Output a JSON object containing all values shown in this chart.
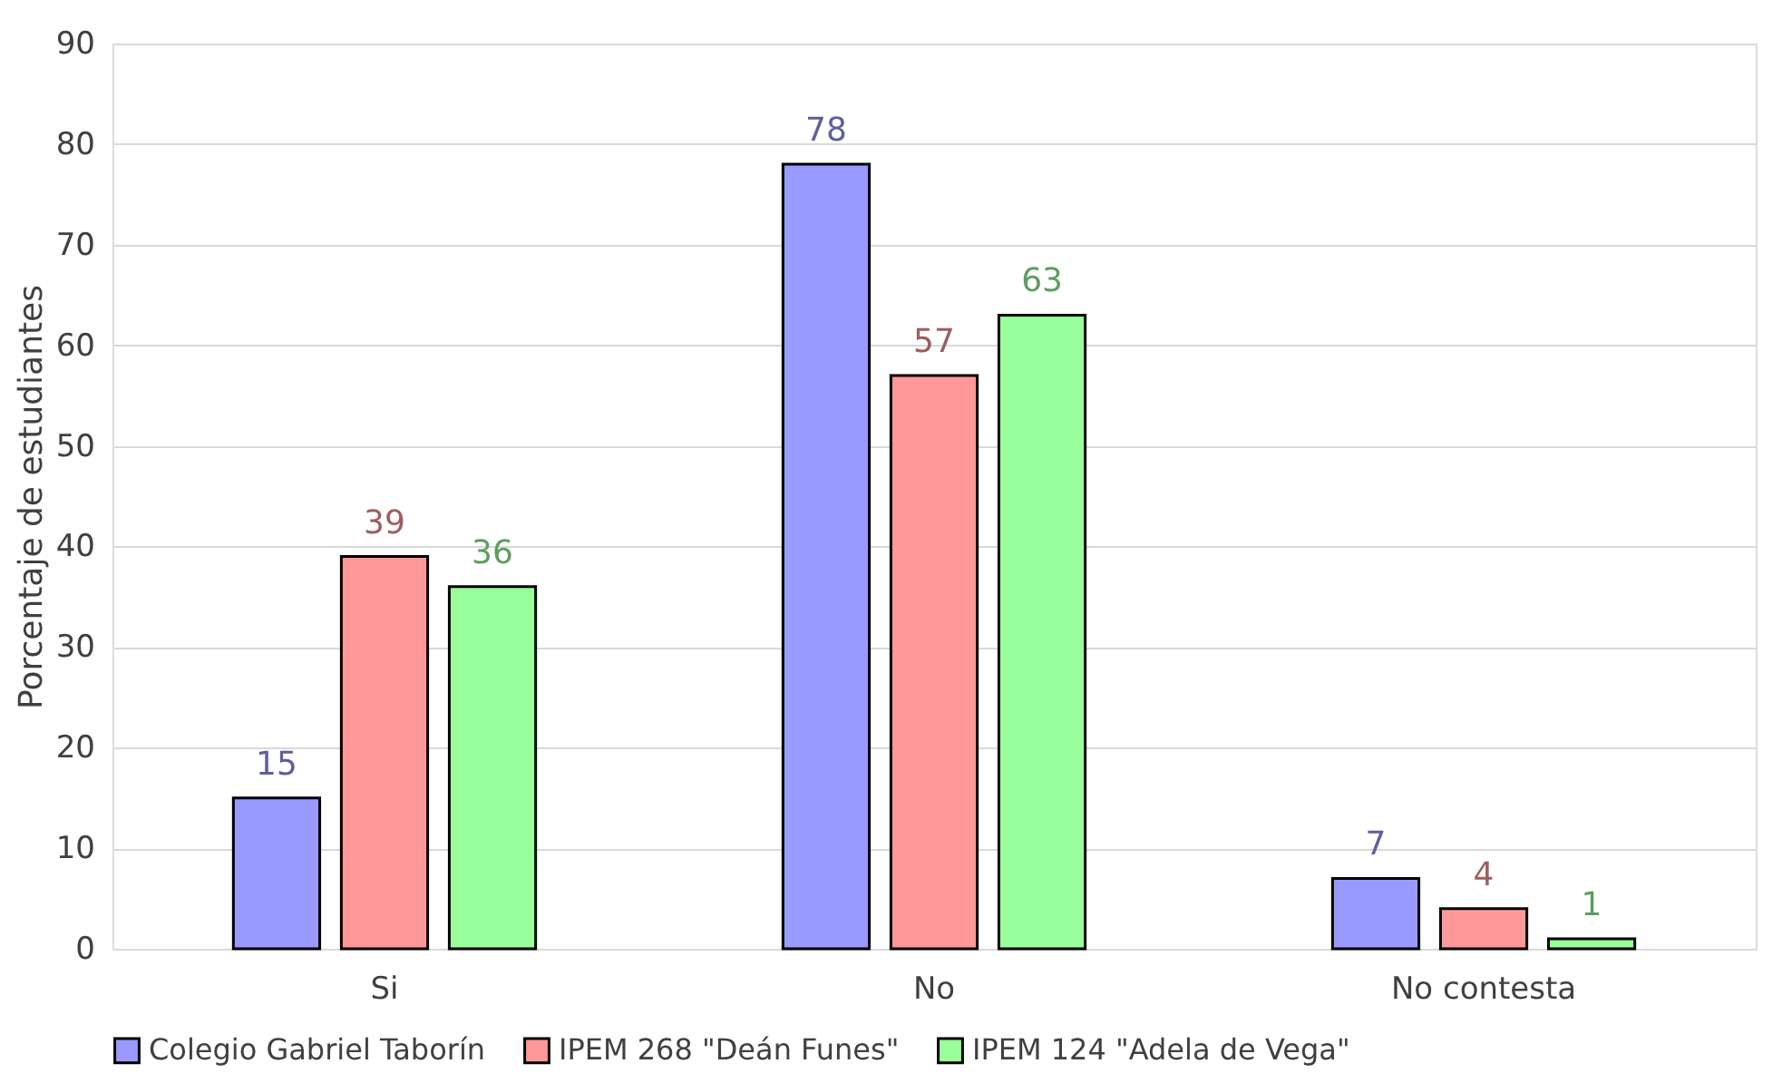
{
  "chart_data": {
    "type": "bar",
    "ylabel": "Porcentaje de estudiantes",
    "categories": [
      "Si",
      "No",
      "No contesta"
    ],
    "series": [
      {
        "name": "Colegio Gabriel Taborín",
        "color": "#9999ff",
        "values": [
          15,
          78,
          7
        ]
      },
      {
        "name": "IPEM 268 \"Deán Funes\"",
        "color": "#ff9999",
        "values": [
          39,
          57,
          4
        ]
      },
      {
        "name": "IPEM 124 \"Adela de Vega\"",
        "color": "#99ff99",
        "values": [
          36,
          63,
          1
        ]
      }
    ],
    "ylim": [
      0,
      90
    ],
    "yticks": [
      0,
      10,
      20,
      30,
      40,
      50,
      60,
      70,
      80,
      90
    ],
    "grid": "y",
    "legend": "bottom",
    "data_labels": true
  }
}
